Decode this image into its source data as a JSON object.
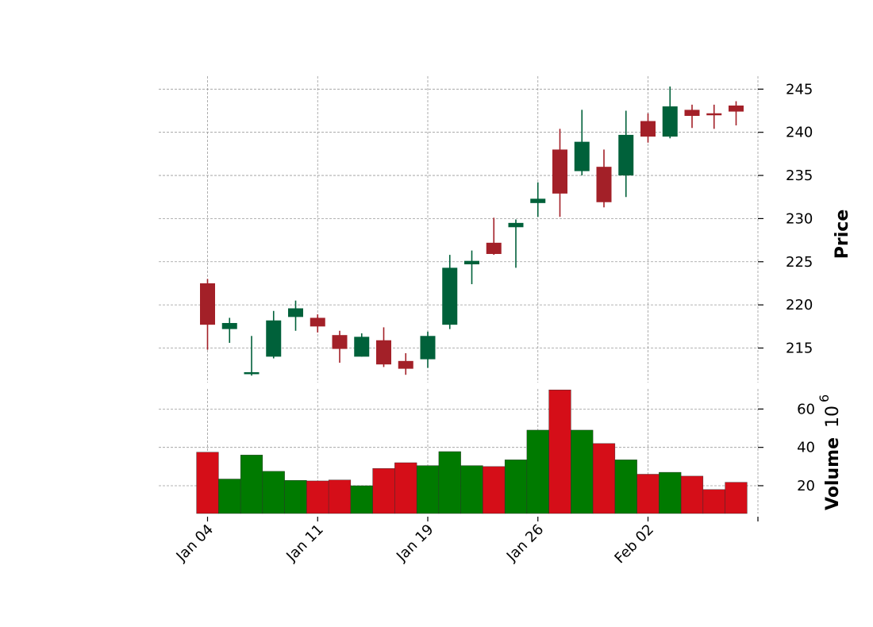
{
  "chart_data": {
    "type": "candlestick",
    "ylabel": "Price",
    "volume_label": "Volume",
    "volume_multiplier_base": "10",
    "volume_multiplier_exp": "6",
    "price_ylim": [
      211,
      246.5
    ],
    "volume_ylim": [
      5.5,
      70.5
    ],
    "price_ticks": [
      "245",
      "240",
      "235",
      "230",
      "225",
      "220",
      "215"
    ],
    "volume_ticks": [
      "60",
      "40",
      "20"
    ],
    "x_tick_labels": [
      {
        "label": "Jan 04",
        "index": 0
      },
      {
        "label": "Jan 11",
        "index": 5
      },
      {
        "label": "Jan 19",
        "index": 10
      },
      {
        "label": "Jan 26",
        "index": 15
      },
      {
        "label": "Feb 02",
        "index": 20
      }
    ],
    "colors": {
      "up_candle": "#00613a",
      "down_candle": "#a32028",
      "up_volume": "#007a00",
      "down_volume": "#d50e18"
    },
    "candles": [
      {
        "open": 222.5,
        "high": 223.0,
        "low": 214.8,
        "close": 217.7,
        "volume": 37.5
      },
      {
        "open": 217.2,
        "high": 218.5,
        "low": 215.6,
        "close": 217.9,
        "volume": 23.5
      },
      {
        "open": 212.1,
        "high": 216.4,
        "low": 211.8,
        "close": 212.2,
        "volume": 36.0
      },
      {
        "open": 214.0,
        "high": 219.3,
        "low": 213.8,
        "close": 218.2,
        "volume": 27.5
      },
      {
        "open": 218.6,
        "high": 220.5,
        "low": 217.0,
        "close": 219.6,
        "volume": 22.8
      },
      {
        "open": 218.5,
        "high": 218.9,
        "low": 216.8,
        "close": 217.5,
        "volume": 22.5
      },
      {
        "open": 216.5,
        "high": 217.0,
        "low": 213.3,
        "close": 214.9,
        "volume": 23.0
      },
      {
        "open": 214.0,
        "high": 216.7,
        "low": 214.0,
        "close": 216.3,
        "volume": 20.0
      },
      {
        "open": 215.9,
        "high": 217.4,
        "low": 212.8,
        "close": 213.1,
        "volume": 29.0
      },
      {
        "open": 213.5,
        "high": 214.4,
        "low": 211.9,
        "close": 212.6,
        "volume": 32.0
      },
      {
        "open": 213.7,
        "high": 216.9,
        "low": 212.7,
        "close": 216.4,
        "volume": 30.5
      },
      {
        "open": 217.7,
        "high": 225.8,
        "low": 217.2,
        "close": 224.3,
        "volume": 37.8
      },
      {
        "open": 224.7,
        "high": 226.3,
        "low": 222.4,
        "close": 225.1,
        "volume": 30.5
      },
      {
        "open": 227.2,
        "high": 230.1,
        "low": 225.8,
        "close": 225.9,
        "volume": 30.0
      },
      {
        "open": 229.0,
        "high": 229.9,
        "low": 224.3,
        "close": 229.5,
        "volume": 33.5
      },
      {
        "open": 231.8,
        "high": 234.2,
        "low": 230.2,
        "close": 232.3,
        "volume": 49.0
      },
      {
        "open": 238.0,
        "high": 240.4,
        "low": 230.2,
        "close": 232.9,
        "volume": 70.0
      },
      {
        "open": 235.5,
        "high": 242.6,
        "low": 235.0,
        "close": 238.9,
        "volume": 49.0
      },
      {
        "open": 236.0,
        "high": 238.0,
        "low": 231.3,
        "close": 231.9,
        "volume": 42.0
      },
      {
        "open": 235.0,
        "high": 242.5,
        "low": 232.5,
        "close": 239.7,
        "volume": 33.5
      },
      {
        "open": 241.3,
        "high": 242.2,
        "low": 238.8,
        "close": 239.5,
        "volume": 26.0
      },
      {
        "open": 239.5,
        "high": 245.3,
        "low": 239.3,
        "close": 243.0,
        "volume": 27.0
      },
      {
        "open": 242.6,
        "high": 243.2,
        "low": 240.5,
        "close": 241.9,
        "volume": 25.0
      },
      {
        "open": 242.2,
        "high": 243.2,
        "low": 240.4,
        "close": 242.1,
        "volume": 18.0
      },
      {
        "open": 243.1,
        "high": 243.6,
        "low": 240.8,
        "close": 242.4,
        "volume": 21.8
      }
    ]
  }
}
